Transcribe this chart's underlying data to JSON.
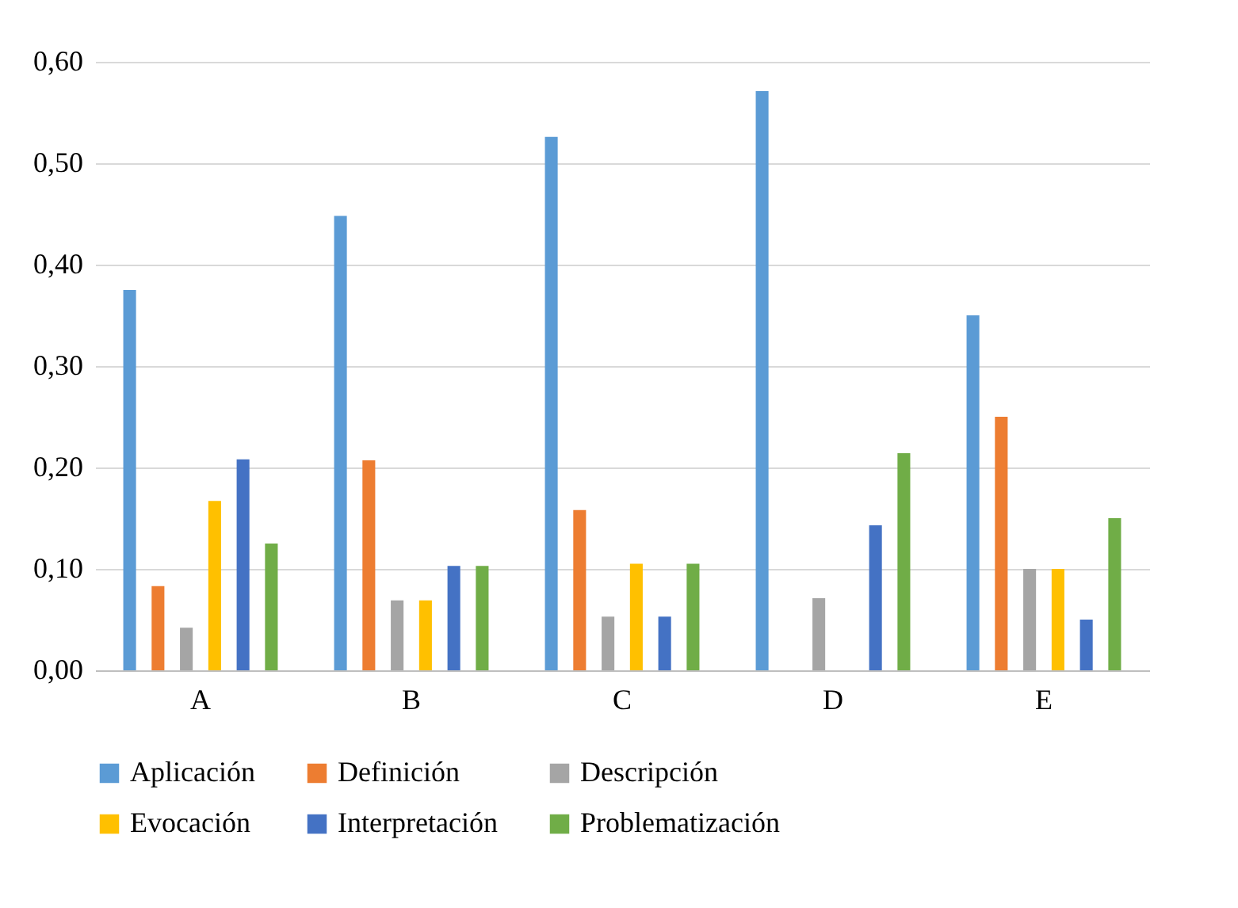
{
  "chart_data": {
    "type": "bar",
    "categories": [
      "A",
      "B",
      "C",
      "D",
      "E"
    ],
    "series": [
      {
        "name": "Aplicación",
        "color": "#5b9bd5",
        "values": [
          0.375,
          0.448,
          0.526,
          0.571,
          0.35
        ]
      },
      {
        "name": "Definición",
        "color": "#ed7d31",
        "values": [
          0.083,
          0.207,
          0.158,
          0,
          0.25
        ]
      },
      {
        "name": "Descripción",
        "color": "#a5a5a5",
        "values": [
          0.042,
          0.069,
          0.053,
          0.071,
          0.1
        ]
      },
      {
        "name": "Evocación",
        "color": "#ffc000",
        "values": [
          0.167,
          0.069,
          0.105,
          0,
          0.1
        ]
      },
      {
        "name": "Interpretación",
        "color": "#4472c4",
        "values": [
          0.208,
          0.103,
          0.053,
          0.143,
          0.05
        ]
      },
      {
        "name": "Problematización",
        "color": "#70ad47",
        "values": [
          0.125,
          0.103,
          0.105,
          0.214,
          0.15
        ]
      }
    ],
    "ylim": [
      0,
      0.6
    ],
    "yticks": [
      {
        "value": 0,
        "label": "0,00"
      },
      {
        "value": 0.1,
        "label": "0,10"
      },
      {
        "value": 0.2,
        "label": "0,20"
      },
      {
        "value": 0.3,
        "label": "0,30"
      },
      {
        "value": 0.4,
        "label": "0,40"
      },
      {
        "value": 0.5,
        "label": "0,50"
      },
      {
        "value": 0.6,
        "label": "0,60"
      }
    ],
    "grid": "y",
    "legend": "bottom"
  }
}
